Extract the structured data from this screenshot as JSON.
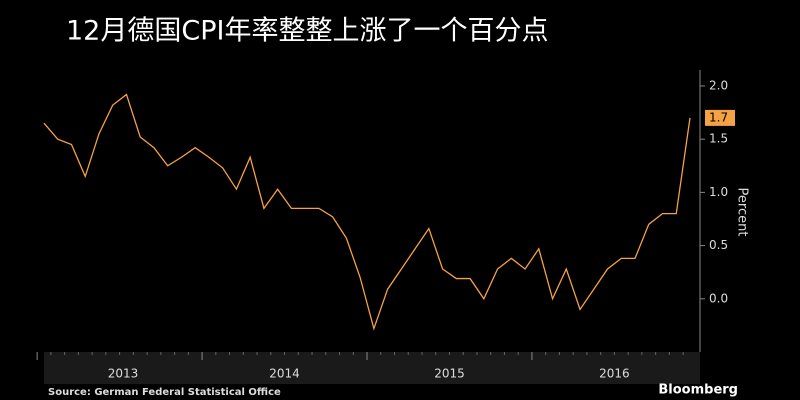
{
  "chart_data": {
    "type": "line",
    "title": "12月德国CPI年率整整上涨了一个百分点",
    "ylabel": "Percent",
    "source": "Source: German Federal Statistical Office",
    "brand": "Bloomberg",
    "categories": [
      "2013",
      null,
      null,
      null,
      null,
      null,
      null,
      null,
      null,
      null,
      null,
      null,
      "2014",
      null,
      null,
      null,
      null,
      null,
      null,
      null,
      null,
      null,
      null,
      null,
      "2015",
      null,
      null,
      null,
      null,
      null,
      null,
      null,
      null,
      null,
      null,
      null,
      "2016",
      null,
      null,
      null,
      null,
      null,
      null,
      null,
      null,
      null,
      null,
      null
    ],
    "series": [
      {
        "name": "CPI",
        "color": "#f5a244",
        "values": [
          1.65,
          1.5,
          1.45,
          1.15,
          1.55,
          1.82,
          1.92,
          1.52,
          1.42,
          1.25,
          1.33,
          1.42,
          1.33,
          1.23,
          1.03,
          1.33,
          0.85,
          1.03,
          0.85,
          0.85,
          0.85,
          0.77,
          0.57,
          0.2,
          -0.28,
          0.09,
          0.28,
          0.47,
          0.66,
          0.28,
          0.19,
          0.19,
          0.0,
          0.28,
          0.38,
          0.28,
          0.47,
          0.0,
          0.28,
          -0.1,
          0.09,
          0.28,
          0.38,
          0.38,
          0.7,
          0.8,
          0.8,
          1.7
        ]
      }
    ],
    "ylim": [
      -0.5,
      2.15
    ],
    "yticks": [
      {
        "value": 0,
        "label": "0.0"
      },
      0.5,
      {
        "value": 1,
        "label": "1.0"
      },
      1.5,
      {
        "value": 2,
        "label": "2.0"
      }
    ],
    "grid": false
  }
}
